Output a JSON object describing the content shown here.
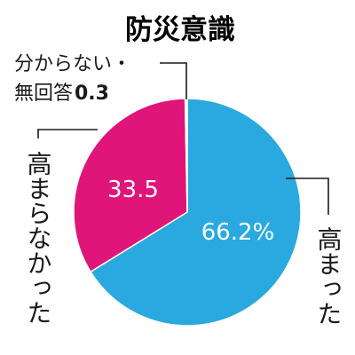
{
  "chart_data": {
    "type": "pie",
    "title": "防災意識",
    "slices": [
      {
        "label": "高まった",
        "value": 66.2,
        "value_label": "66.2%",
        "color": "#29a9e0"
      },
      {
        "label": "高まらなかった",
        "value": 33.5,
        "value_label": "33.5",
        "color": "#e0157a"
      },
      {
        "label_line1": "分からない・",
        "label_line2": "無回答",
        "value": 0.3,
        "value_label": "0.3",
        "color": "#ffffff"
      }
    ],
    "start": "top",
    "direction": "clockwise"
  }
}
